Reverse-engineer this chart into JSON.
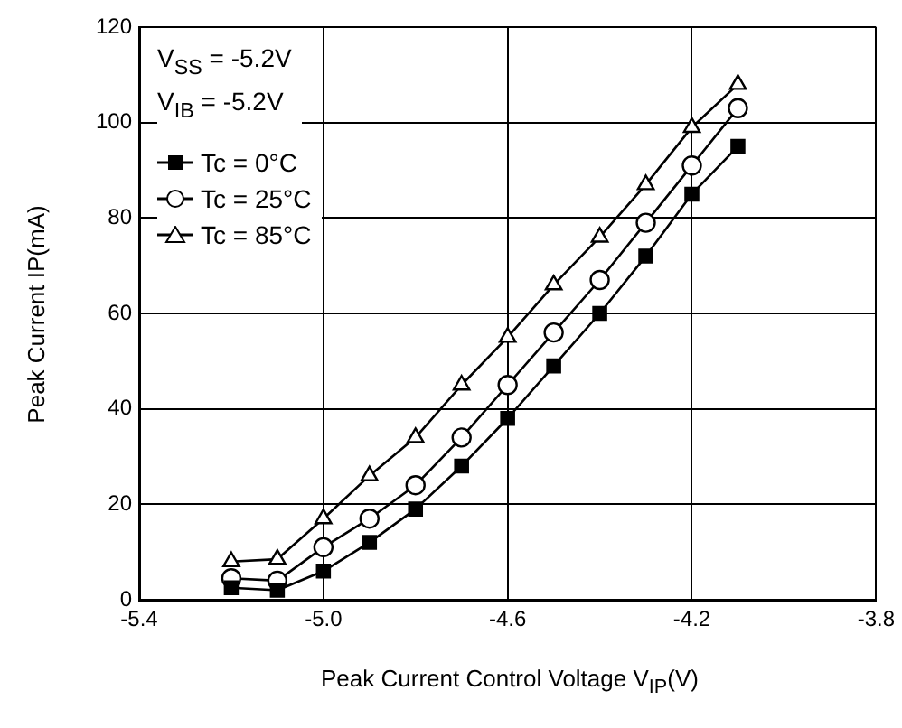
{
  "chart_data": {
    "type": "line",
    "xlabel": "Peak Current Control Voltage V$_{IP}$(V)",
    "ylabel": "Peak Current IP(mA)",
    "annotations": [
      "V$_{SS}$ = -5.2V",
      "V$_{IB}$ = -5.2V"
    ],
    "x": [
      -5.2,
      -5.1,
      -5.0,
      -4.9,
      -4.8,
      -4.7,
      -4.6,
      -4.5,
      -4.4,
      -4.3,
      -4.2,
      -4.1
    ],
    "series": [
      {
        "name": "Tc = 0°C",
        "color": "#000000",
        "marker": "square",
        "values": [
          2.5,
          2,
          6,
          12,
          19,
          28,
          38,
          49,
          60,
          72,
          85,
          95
        ]
      },
      {
        "name": "Tc = 25°C",
        "color": "#000000",
        "marker": "circle",
        "values": [
          4.5,
          4,
          11,
          17,
          24,
          34,
          45,
          56,
          67,
          79,
          91,
          103
        ]
      },
      {
        "name": "Tc = 85°C",
        "color": "#000000",
        "marker": "triangle",
        "values": [
          8,
          8.5,
          17,
          26,
          34,
          45,
          55,
          66,
          76,
          87,
          99,
          108
        ]
      }
    ],
    "xlim": [
      -5.4,
      -3.8
    ],
    "xticks": [
      {
        "value": -5.4,
        "label": "-5.4"
      },
      {
        "value": -5.0,
        "label": "-5.0"
      },
      {
        "value": -4.6,
        "label": "-4.6"
      },
      {
        "value": -4.2,
        "label": "-4.2"
      },
      {
        "value": -3.8,
        "label": "-3.8"
      }
    ],
    "ylim": [
      0,
      120
    ],
    "yticks": [
      0,
      20,
      40,
      60,
      80,
      100,
      120
    ],
    "grid": true,
    "legend": "top left",
    "line_style": "solid"
  }
}
